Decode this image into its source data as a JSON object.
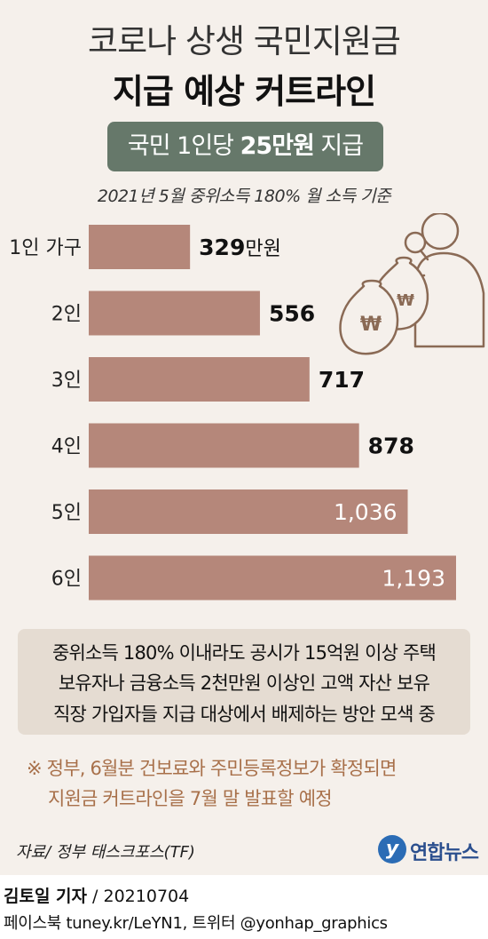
{
  "header": {
    "title_line1": "코로나 상생 국민지원금",
    "title_line2": "지급 예상 커트라인",
    "badge_prefix": "국민 1인당 ",
    "badge_bold": "25만원",
    "badge_suffix": " 지급",
    "basis": "2021년 5월 중위소득 180% 월 소득 기준"
  },
  "chart_data": {
    "type": "bar",
    "orientation": "horizontal",
    "categories": [
      "1인 가구",
      "2인",
      "3인",
      "4인",
      "5인",
      "6인"
    ],
    "values": [
      329,
      556,
      717,
      878,
      1036,
      1193
    ],
    "value_labels": [
      "329",
      "556",
      "717",
      "878",
      "1,036",
      "1,193"
    ],
    "first_label_unit": "만원",
    "label_inside": [
      false,
      false,
      false,
      false,
      true,
      true
    ],
    "bar_color": "#b5877a",
    "title": "지급 예상 커트라인",
    "xlabel": "",
    "ylabel": ""
  },
  "note_box": {
    "lines": [
      "중위소득 180% 이내라도 공시가 15억원 이상 주택",
      "보유자나 금융소득 2천만원 이상인 고액 자산 보유",
      "직장 가입자들 지급 대상에서 배제하는 방안 모색 중"
    ]
  },
  "footnote": {
    "lines": [
      "※ 정부, 6월분 건보료와 주민등록정보가 확정되면",
      "지원금 커트라인을 7월 말 발표할 예정"
    ]
  },
  "source": "자료/ 정부 태스크포스(TF)",
  "logo": {
    "mark": "y",
    "text": "연합뉴스"
  },
  "credit": {
    "author": "김토일 기자",
    "separator": " / ",
    "date": "20210704"
  },
  "sns": "페이스북 tuney.kr/LeYN1, 트위터 @yonhap_graphics",
  "colors": {
    "background": "#f5f0eb",
    "badge": "#66786a",
    "note_box": "#e5dcd2",
    "footnote_text": "#a8704a",
    "illustration": "#8a6a55"
  },
  "illustration": {
    "icon": "person-with-money-bags-icon",
    "currency_symbol": "₩"
  }
}
